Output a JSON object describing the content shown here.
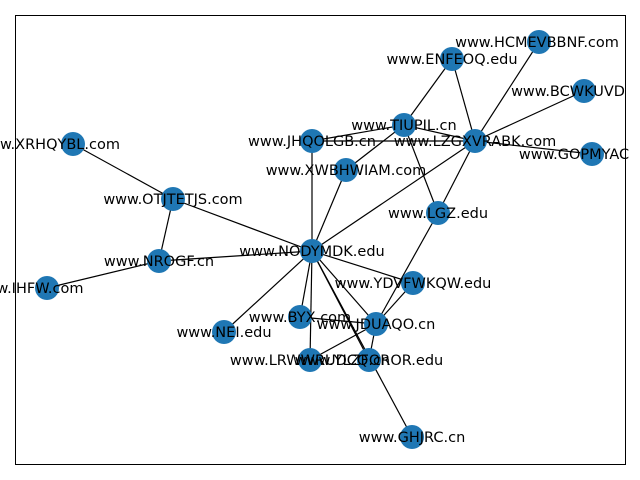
{
  "graph": {
    "nodes": [
      {
        "id": "ncv",
        "label": "www.NODYMDK.edu"
      },
      {
        "id": "tiu",
        "label": "www.TIUPIL.cn"
      },
      {
        "id": "lzg",
        "label": "www.LZGXVRABK.com"
      },
      {
        "id": "hcm",
        "label": "www.HCMEVBBNF.com"
      },
      {
        "id": "enf",
        "label": "www.ENFEOQ.edu"
      },
      {
        "id": "bcw",
        "label": "www.BCWKUVD"
      },
      {
        "id": "gop",
        "label": "www.GOPMYAC"
      },
      {
        "id": "jhq",
        "label": "www.JHQOLGB.cn"
      },
      {
        "id": "xwb",
        "label": "www.XWBHWIAM.com"
      },
      {
        "id": "xrh",
        "label": "w.XRHQYBL.com"
      },
      {
        "id": "otj",
        "label": "www.OTJTETJS.com"
      },
      {
        "id": "lgz",
        "label": "www.LGZ.edu"
      },
      {
        "id": "nro",
        "label": "www.NROGF.cn"
      },
      {
        "id": "ihf",
        "label": "w.IHFW.com"
      },
      {
        "id": "ydv",
        "label": "www.YDVFWKQW.edu"
      },
      {
        "id": "byx",
        "label": "www.BYX.com"
      },
      {
        "id": "nei",
        "label": "www.NEI.edu"
      },
      {
        "id": "jdu",
        "label": "www.JDUAQO.cn"
      },
      {
        "id": "lrw",
        "label": "www.LRWWRUDCQ.cn"
      },
      {
        "id": "ror",
        "label": "www.YLZFOROR.edu"
      },
      {
        "id": "ghj",
        "label": "www.GHJRC.cn"
      }
    ],
    "edges": [
      [
        "ncv",
        "otj"
      ],
      [
        "ncv",
        "nro"
      ],
      [
        "ncv",
        "jhq"
      ],
      [
        "ncv",
        "xwb"
      ],
      [
        "ncv",
        "lzg"
      ],
      [
        "ncv",
        "ydv"
      ],
      [
        "ncv",
        "byx"
      ],
      [
        "ncv",
        "nei"
      ],
      [
        "ncv",
        "lrw"
      ],
      [
        "ncv",
        "jdu"
      ],
      [
        "ncv",
        "ror"
      ],
      [
        "ncv",
        "ghj"
      ],
      [
        "otj",
        "xrh"
      ],
      [
        "otj",
        "nro"
      ],
      [
        "nro",
        "ihf"
      ],
      [
        "jhq",
        "tiu"
      ],
      [
        "jhq",
        "lzg"
      ],
      [
        "xwb",
        "tiu"
      ],
      [
        "tiu",
        "enf"
      ],
      [
        "tiu",
        "lzg"
      ],
      [
        "tiu",
        "lgz"
      ],
      [
        "enf",
        "lzg"
      ],
      [
        "hcm",
        "lzg"
      ],
      [
        "bcw",
        "lzg"
      ],
      [
        "gop",
        "lzg"
      ],
      [
        "lzg",
        "lgz"
      ],
      [
        "lgz",
        "jdu"
      ],
      [
        "ydv",
        "jdu"
      ],
      [
        "byx",
        "jdu"
      ],
      [
        "jdu",
        "lrw"
      ],
      [
        "jdu",
        "ror"
      ]
    ],
    "colors": {
      "node_fill": "#1f77b4",
      "edge": "#000000",
      "frame": "#000000"
    }
  }
}
